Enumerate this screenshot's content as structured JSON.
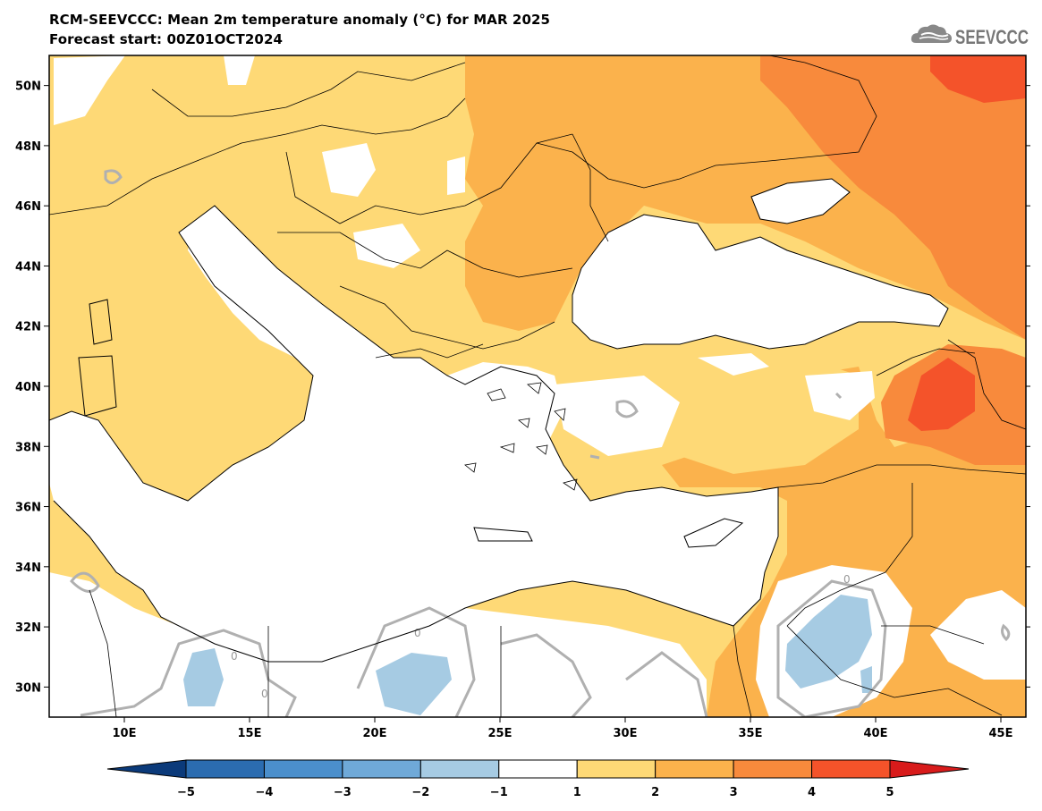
{
  "header": {
    "title": "RCM-SEEVCCC: Mean 2m temperature anomaly (°C) for MAR 2025",
    "subtitle": "Forecast start: 00Z01OCT2024",
    "logo_text": "SEEVCCC"
  },
  "map": {
    "lon_range": [
      7,
      46
    ],
    "lat_range": [
      29,
      51
    ],
    "lat_ticks": [
      "50N",
      "48N",
      "46N",
      "44N",
      "42N",
      "40N",
      "38N",
      "36N",
      "34N",
      "32N",
      "30N"
    ],
    "lon_ticks": [
      "10E",
      "15E",
      "20E",
      "25E",
      "30E",
      "35E",
      "40E",
      "45E"
    ],
    "contour_label": "0"
  },
  "colorbar": {
    "levels": [
      "−5",
      "−4",
      "−3",
      "−2",
      "−1",
      "1",
      "2",
      "3",
      "4",
      "5"
    ],
    "colors": [
      "#0b3a7a",
      "#2b6cb0",
      "#4b8fcc",
      "#6fa9d8",
      "#a6cbe3",
      "#ffffff",
      "#fed976",
      "#fbb24c",
      "#f88a3c",
      "#f4532a",
      "#d81b1b"
    ]
  },
  "colors": {
    "sea": "#ffffff",
    "anom_1_2": "#fed976",
    "anom_2_3": "#fbb24c",
    "anom_3_4": "#f88a3c",
    "anom_4_5": "#f4532a",
    "anom_neg": "#a6cbe3",
    "zero_contour": "#b0b0b0"
  }
}
